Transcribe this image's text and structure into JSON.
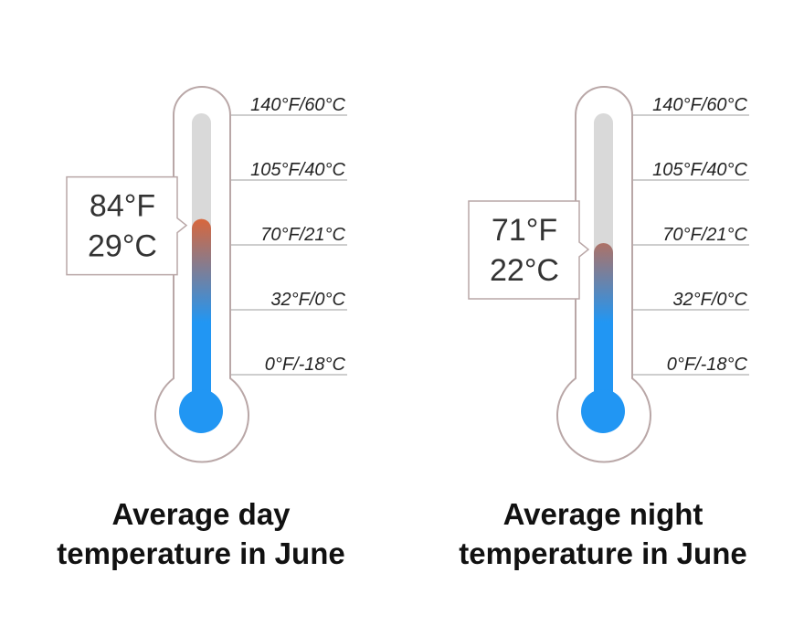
{
  "chart_data": [
    {
      "type": "thermometer",
      "title_line1": "Average day",
      "title_line2": "temperature in June",
      "value_f": 84,
      "value_c": 29,
      "value_f_label": "84°F",
      "value_c_label": "29°C",
      "ticks": [
        {
          "label": "140°F/60°C",
          "f": 140
        },
        {
          "label": "105°F/40°C",
          "f": 105
        },
        {
          "label": "70°F/21°C",
          "f": 70
        },
        {
          "label": "32°F/0°C",
          "f": 32
        },
        {
          "label": "0°F/-18°C",
          "f": 0
        }
      ]
    },
    {
      "type": "thermometer",
      "title_line1": "Average night",
      "title_line2": "temperature in June",
      "value_f": 71,
      "value_c": 22,
      "value_f_label": "71°F",
      "value_c_label": "22°C",
      "ticks": [
        {
          "label": "140°F/60°C",
          "f": 140
        },
        {
          "label": "105°F/40°C",
          "f": 105
        },
        {
          "label": "70°F/21°C",
          "f": 70
        },
        {
          "label": "32°F/0°C",
          "f": 32
        },
        {
          "label": "0°F/-18°C",
          "f": 0
        }
      ]
    }
  ],
  "colors": {
    "outline": "#b9a7a7",
    "tube_empty": "#d9d9d9",
    "fill_hot": "#e8622c",
    "fill_cold": "#2196f3",
    "gridline": "#9e9e9e",
    "label_text": "#222222",
    "callout_border": "#b9a7a7",
    "callout_text": "#333333"
  }
}
